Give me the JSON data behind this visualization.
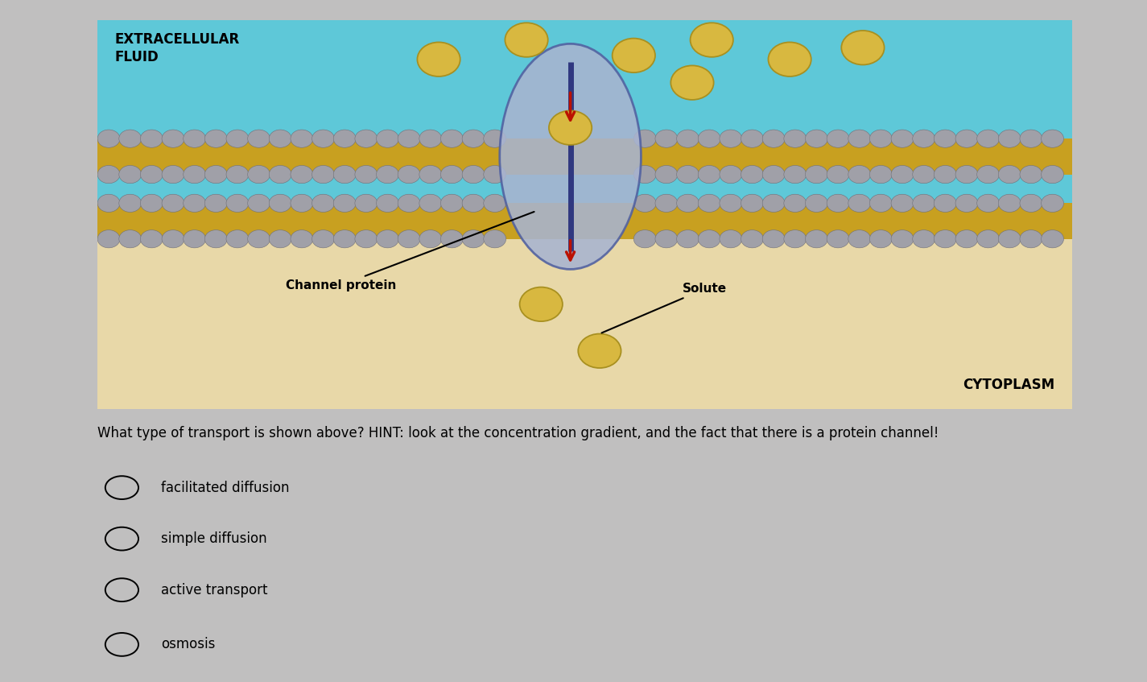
{
  "bg_color": "#c0bfbf",
  "diagram_bg": "#ffffff",
  "extracellular_color": "#5ec8d8",
  "cytoplasm_color": "#e8d8a8",
  "membrane_yellow": "#c8a020",
  "membrane_bead_color": "#a0a0a8",
  "membrane_bead_edge": "#707078",
  "protein_fill": "#a8b4d0",
  "protein_edge": "#5060a0",
  "protein_channel_color": "#303880",
  "solute_color": "#d8b840",
  "solute_edge": "#a89020",
  "arrow_color": "#bb1100",
  "title_text": "EXTRACELLULAR\nFLUID",
  "cytoplasm_label": "CYTOPLASM",
  "channel_label": "Channel protein",
  "solute_label": "Solute",
  "question_text": "What type of transport is shown above? HINT: look at the concentration gradient, and the fact that there is a protein channel!",
  "options": [
    "facilitated diffusion",
    "simple diffusion",
    "active transport",
    "osmosis"
  ],
  "question_fontsize": 12,
  "option_fontsize": 12,
  "label_fontsize": 11
}
